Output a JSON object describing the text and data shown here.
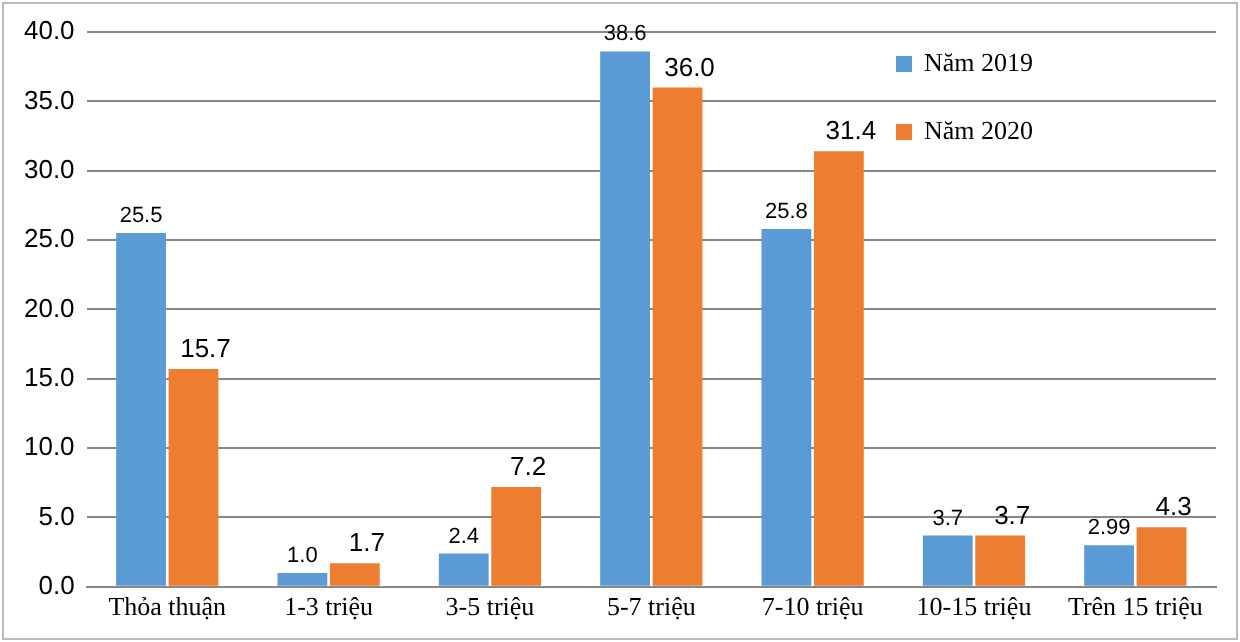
{
  "chart_data": {
    "type": "bar",
    "categories": [
      "Thỏa thuận",
      "1-3 triệu",
      "3-5 triệu",
      "5-7 triệu",
      "7-10 triệu",
      "10-15 triệu",
      "Trên 15 triệu"
    ],
    "series": [
      {
        "name": "Năm 2019",
        "color": "#5b9bd5",
        "values": [
          25.5,
          1.0,
          2.4,
          38.6,
          25.8,
          3.7,
          2.99
        ],
        "value_labels": [
          "25.5",
          "1.0",
          "2.4",
          "38.6",
          "25.8",
          "3.7",
          "2.99"
        ]
      },
      {
        "name": "Năm 2020",
        "color": "#ed7d31",
        "values": [
          15.7,
          1.7,
          7.2,
          36.0,
          31.4,
          3.7,
          4.3
        ],
        "value_labels": [
          "15.7",
          "1.7",
          "7.2",
          "36.0",
          "31.4",
          "3.7",
          "4.3"
        ]
      }
    ],
    "ylim": [
      0,
      40
    ],
    "yticks": [
      {
        "value": 0,
        "label": "0.0"
      },
      {
        "value": 5,
        "label": "5.0"
      },
      {
        "value": 10,
        "label": "10.0"
      },
      {
        "value": 15,
        "label": "15.0"
      },
      {
        "value": 20,
        "label": "20.0"
      },
      {
        "value": 25,
        "label": "25.0"
      },
      {
        "value": 30,
        "label": "30.0"
      },
      {
        "value": 35,
        "label": "35.0"
      },
      {
        "value": 40,
        "label": "40.0"
      }
    ],
    "grid": "y",
    "legend": "top right"
  }
}
